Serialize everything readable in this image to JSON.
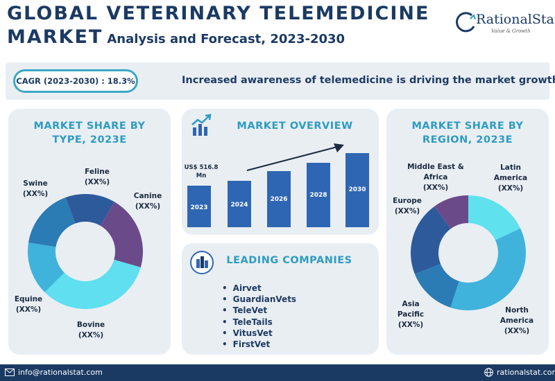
{
  "header": {
    "title_line1": "GLOBAL VETERINARY TELEMEDICINE",
    "title_line2_big": "MARKET",
    "title_line2_small": "Analysis and Forecast, 2023-2030"
  },
  "logo": {
    "name": "RationalStat",
    "tagline": "Value & Growth"
  },
  "banner": {
    "cagr": "CAGR (2023-2030) : 18.3%",
    "driver": "Increased awareness of telemedicine is driving the market growth"
  },
  "panels": {
    "type_title_1": "MARKET SHARE BY",
    "type_title_2": "TYPE, 2023E",
    "overview_title": "MARKET OVERVIEW",
    "companies_title": "LEADING COMPANIES",
    "region_title_1": "MARKET SHARE BY",
    "region_title_2": "REGION, 2023E"
  },
  "companies": [
    "Airvet",
    "GuardianVets",
    "TeleVet",
    "TeleTails",
    "VitusVet",
    "FirstVet"
  ],
  "footer": {
    "email": "info@rationalstat.com",
    "website": "rationalstat.com"
  },
  "chart_data": [
    {
      "type": "pie",
      "title": "MARKET SHARE BY TYPE, 2023E",
      "donut": true,
      "categories": [
        "Feline",
        "Canine",
        "Bovine",
        "Equine",
        "Swine"
      ],
      "values": [
        14,
        21,
        33,
        15,
        17
      ],
      "value_labels": [
        "(XX%)",
        "(XX%)",
        "(XX%)",
        "(XX%)",
        "(XX%)"
      ],
      "colors": [
        "#2d5a9a",
        "#6b4a8a",
        "#5fdff0",
        "#3fb3dc",
        "#2b7bb4"
      ]
    },
    {
      "type": "bar",
      "title": "MARKET OVERVIEW",
      "categories": [
        "2023",
        "2024",
        "2026",
        "2028",
        "2030"
      ],
      "values": [
        516.8,
        575,
        700,
        800,
        925
      ],
      "annotation": "US$ 516.8 Mn",
      "trend_arrow": true,
      "color": "#2f66b3"
    },
    {
      "type": "pie",
      "title": "MARKET SHARE BY REGION, 2023E",
      "donut": true,
      "categories": [
        "Latin America",
        "North America",
        "Asia Pacific",
        "Europe",
        "Middle East & Africa"
      ],
      "values": [
        18,
        37,
        14,
        21,
        10
      ],
      "value_labels": [
        "(XX%)",
        "(XX%)",
        "(XX%)",
        "(XX%)",
        "(XX%)"
      ],
      "colors": [
        "#5fe2ee",
        "#3fb3dc",
        "#2b7bb4",
        "#2d5a9a",
        "#6b4a8a"
      ]
    }
  ]
}
